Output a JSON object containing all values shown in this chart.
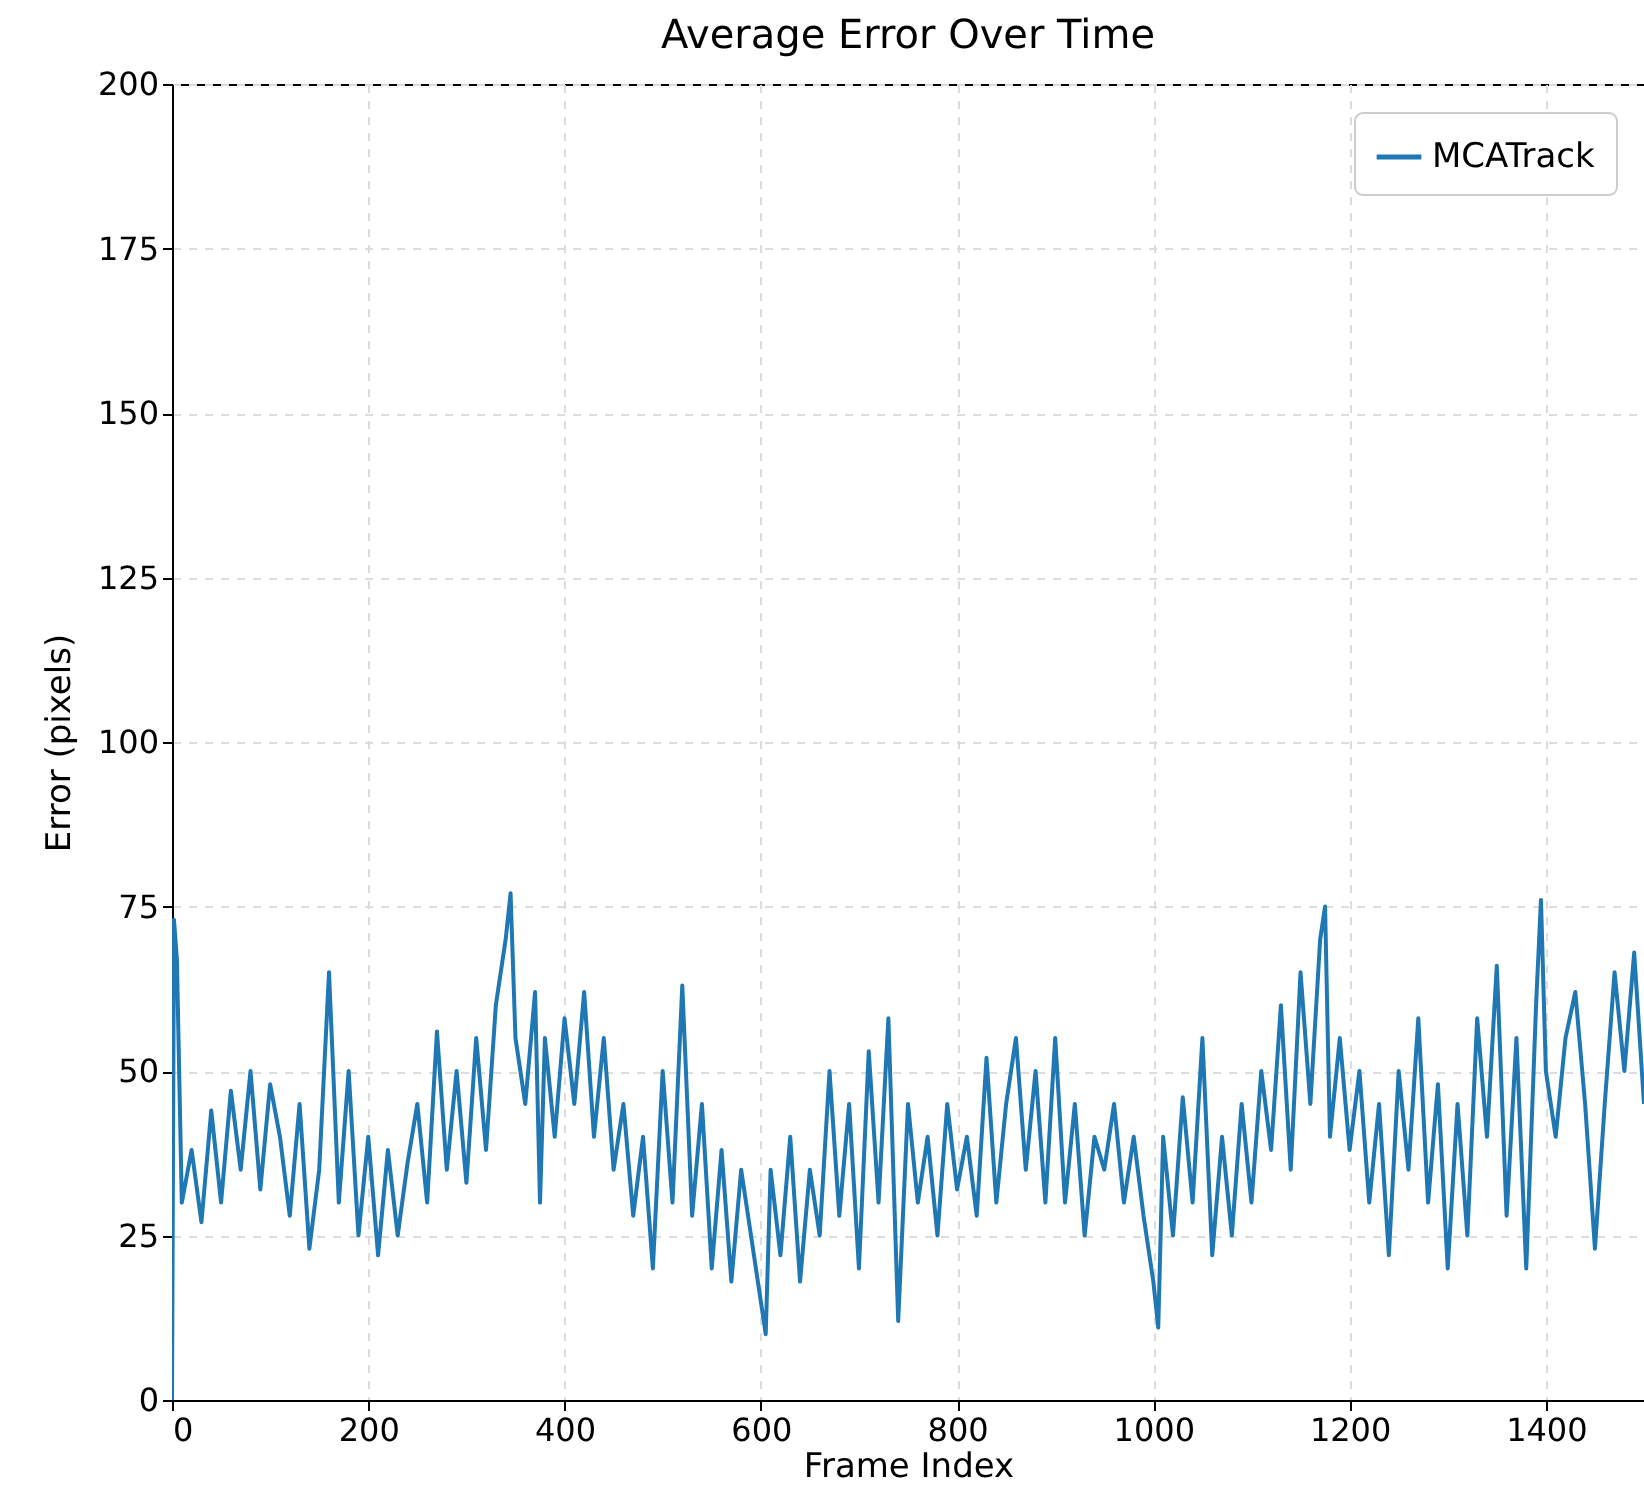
{
  "chart_data": {
    "type": "line",
    "title": "Average Error Over Time",
    "xlabel": "Frame Index",
    "ylabel": "Error (pixels)",
    "xlim": [
      0,
      1500
    ],
    "xticks": [
      0,
      200,
      400,
      600,
      800,
      1000,
      1200,
      1400
    ],
    "ylim": [
      0,
      200
    ],
    "yticks": [
      0,
      25,
      50,
      75,
      100,
      125,
      150,
      175,
      200
    ],
    "grid": true,
    "legend": "top right",
    "series": [
      {
        "name": "MCATrack",
        "color": "#1f77b4",
        "x": [
          0,
          2,
          5,
          10,
          20,
          30,
          40,
          50,
          60,
          70,
          80,
          90,
          100,
          110,
          120,
          130,
          140,
          150,
          160,
          170,
          180,
          190,
          200,
          210,
          220,
          230,
          240,
          250,
          260,
          270,
          280,
          290,
          300,
          310,
          320,
          330,
          340,
          345,
          350,
          360,
          370,
          375,
          380,
          390,
          400,
          410,
          420,
          430,
          440,
          450,
          460,
          470,
          480,
          490,
          500,
          510,
          520,
          530,
          540,
          550,
          560,
          570,
          580,
          590,
          600,
          605,
          610,
          620,
          630,
          640,
          650,
          660,
          670,
          680,
          690,
          700,
          710,
          720,
          730,
          740,
          750,
          760,
          770,
          780,
          790,
          800,
          810,
          820,
          830,
          840,
          850,
          860,
          870,
          880,
          890,
          900,
          910,
          920,
          930,
          940,
          950,
          960,
          970,
          980,
          990,
          1000,
          1005,
          1010,
          1020,
          1030,
          1040,
          1050,
          1060,
          1070,
          1080,
          1090,
          1100,
          1110,
          1120,
          1130,
          1140,
          1150,
          1160,
          1170,
          1175,
          1180,
          1190,
          1200,
          1210,
          1220,
          1230,
          1240,
          1250,
          1260,
          1270,
          1280,
          1290,
          1300,
          1310,
          1320,
          1330,
          1340,
          1350,
          1360,
          1370,
          1380,
          1390,
          1395,
          1400,
          1410,
          1420,
          1430,
          1440,
          1450,
          1460,
          1470,
          1480,
          1490,
          1500
        ],
        "values": [
          0,
          73,
          67,
          30,
          38,
          27,
          44,
          30,
          47,
          35,
          50,
          32,
          48,
          40,
          28,
          45,
          23,
          35,
          65,
          30,
          50,
          25,
          40,
          22,
          38,
          25,
          36,
          45,
          30,
          56,
          35,
          50,
          33,
          55,
          38,
          60,
          70,
          77,
          55,
          45,
          62,
          30,
          55,
          40,
          58,
          45,
          62,
          40,
          55,
          35,
          45,
          28,
          40,
          20,
          50,
          30,
          63,
          28,
          45,
          20,
          38,
          18,
          35,
          25,
          15,
          10,
          35,
          22,
          40,
          18,
          35,
          25,
          50,
          28,
          45,
          20,
          53,
          30,
          58,
          12,
          45,
          30,
          40,
          25,
          45,
          32,
          40,
          28,
          52,
          30,
          45,
          55,
          35,
          50,
          30,
          55,
          30,
          45,
          25,
          40,
          35,
          45,
          30,
          40,
          28,
          18,
          11,
          40,
          25,
          46,
          30,
          55,
          22,
          40,
          25,
          45,
          30,
          50,
          38,
          60,
          35,
          65,
          45,
          70,
          75,
          40,
          55,
          38,
          50,
          30,
          45,
          22,
          50,
          35,
          58,
          30,
          48,
          20,
          45,
          25,
          58,
          40,
          66,
          28,
          55,
          20,
          60,
          76,
          50,
          40,
          55,
          62,
          45,
          23,
          45,
          65,
          50,
          68,
          45
        ]
      }
    ]
  }
}
